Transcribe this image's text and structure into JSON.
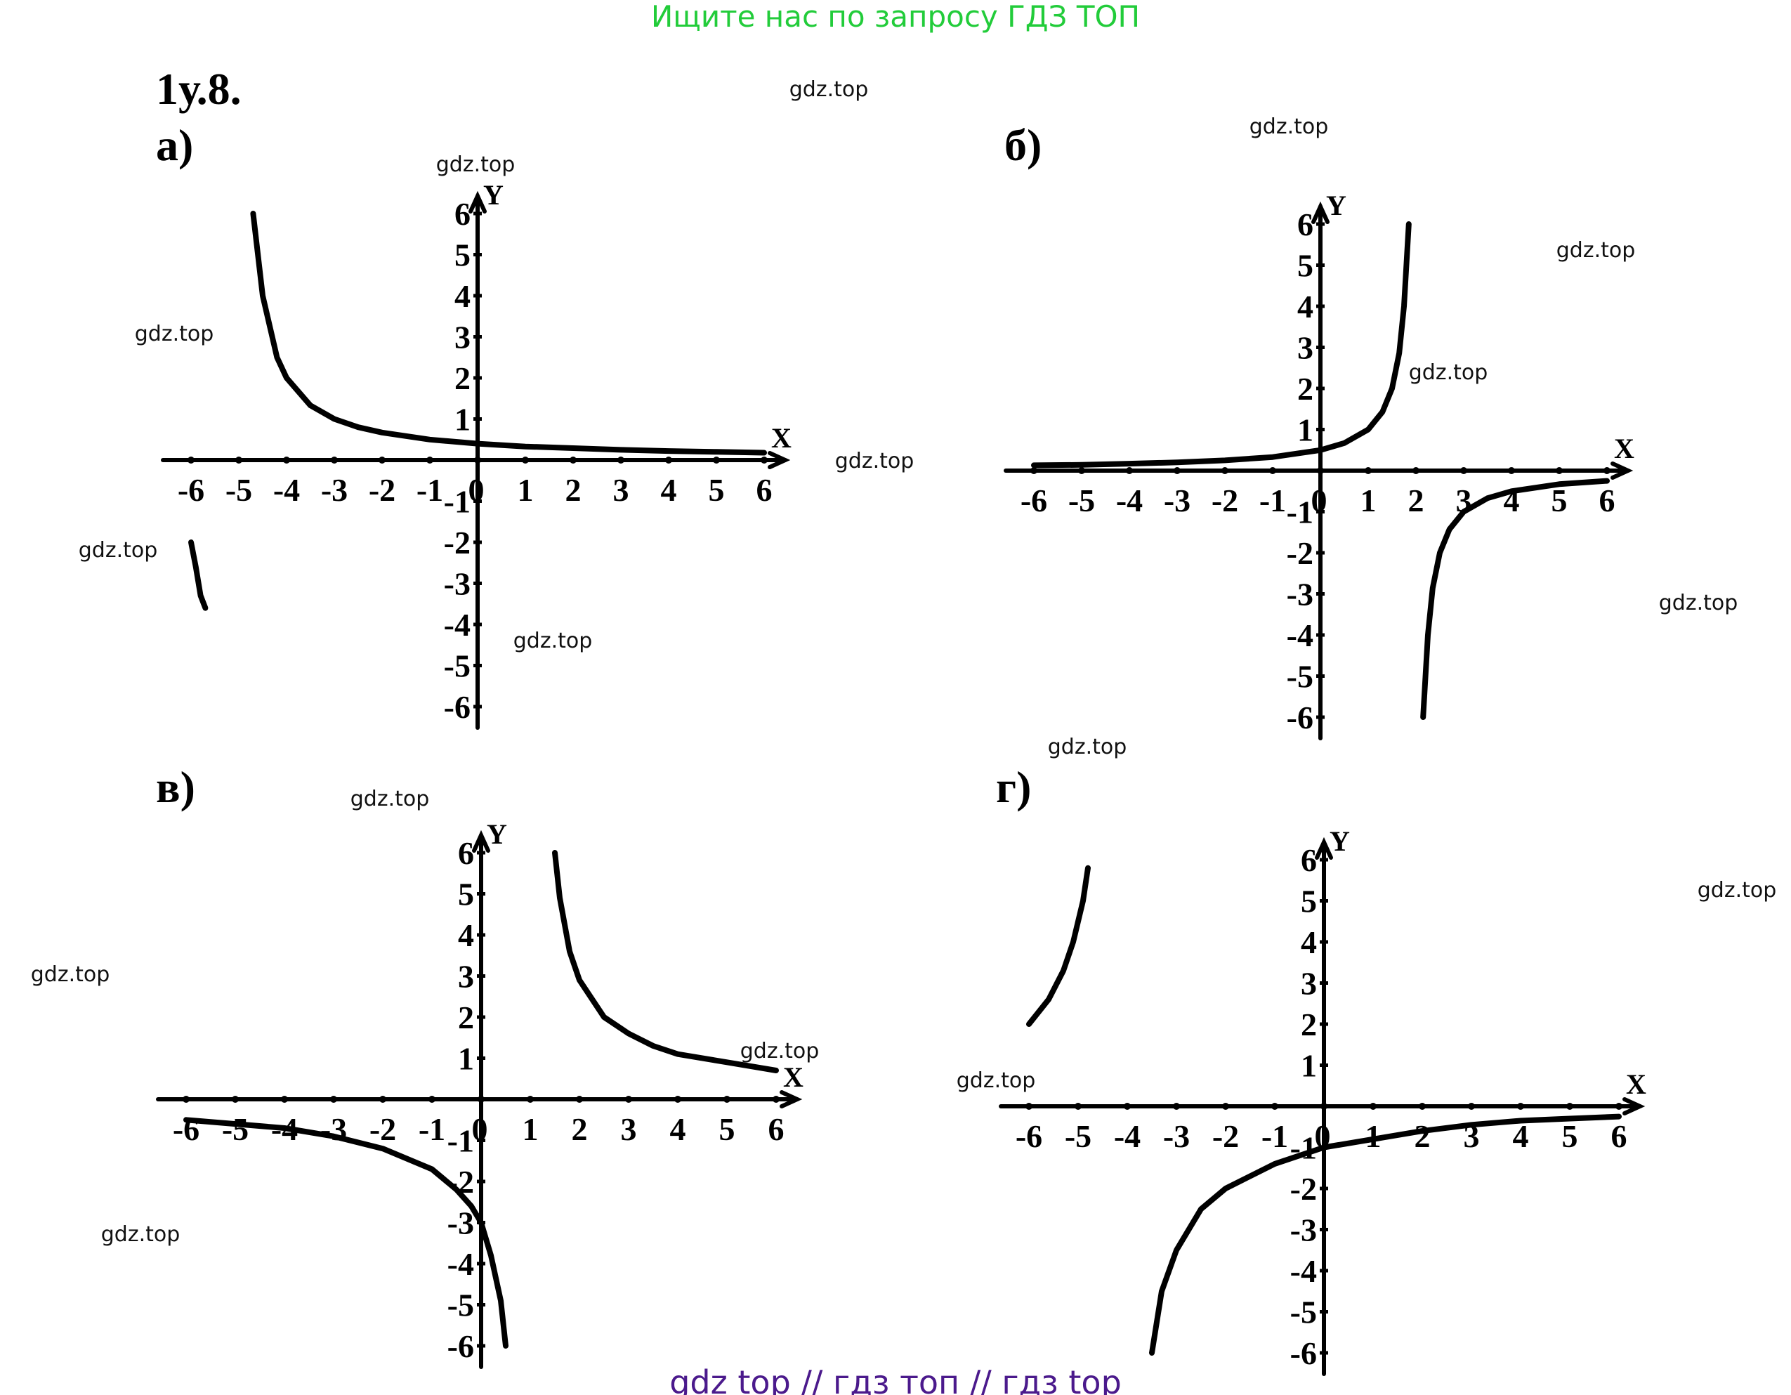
{
  "header": {
    "promo_text": "Ищите нас по запросу ГДЗ ТОП"
  },
  "exercise": {
    "number": "1у.8."
  },
  "watermark": {
    "text": "gdz.top",
    "count": 17
  },
  "footer": {
    "text": "gdz top  //  гдз топ  //  гдз top"
  },
  "colors": {
    "header": "#22cc3a",
    "footer": "#4b1a8c",
    "ink": "#000000"
  },
  "chart_data": [
    {
      "type": "line",
      "part_label": "а)",
      "title": "",
      "xlabel": "X",
      "ylabel": "Y",
      "xlim": [
        -6,
        6
      ],
      "ylim": [
        -6,
        6
      ],
      "grid": false,
      "x_ticks": [
        "-6",
        "-5",
        "-4",
        "-3",
        "-2",
        "-1",
        "0",
        "1",
        "2",
        "3",
        "4",
        "5",
        "6"
      ],
      "y_ticks": [
        "6",
        "5",
        "4",
        "3",
        "2",
        "1",
        "-1",
        "-2",
        "-3",
        "-4",
        "-5",
        "-6"
      ],
      "series": [
        {
          "name": "right branch",
          "x": [
            -4.7,
            -4.5,
            -4.2,
            -4.0,
            -3.5,
            -3.0,
            -2.5,
            -2.0,
            -1.0,
            0,
            1,
            2,
            3,
            4,
            5,
            6
          ],
          "y": [
            6.0,
            4.0,
            2.5,
            2.0,
            1.33,
            1.0,
            0.8,
            0.67,
            0.5,
            0.4,
            0.33,
            0.29,
            0.25,
            0.22,
            0.2,
            0.18
          ]
        },
        {
          "name": "left branch",
          "x": [
            -6.0,
            -5.9,
            -5.8,
            -5.7
          ],
          "y": [
            -2.0,
            -2.6,
            -3.3,
            -3.6
          ]
        }
      ]
    },
    {
      "type": "line",
      "part_label": "б)",
      "title": "",
      "xlabel": "X",
      "ylabel": "Y",
      "xlim": [
        -6,
        6
      ],
      "ylim": [
        -6,
        6
      ],
      "grid": false,
      "x_ticks": [
        "-6",
        "-5",
        "-4",
        "-3",
        "-2",
        "-1",
        "0",
        "1",
        "2",
        "3",
        "4",
        "5",
        "6"
      ],
      "y_ticks": [
        "6",
        "5",
        "4",
        "3",
        "2",
        "1",
        "-1",
        "-2",
        "-3",
        "-4",
        "-5",
        "-6"
      ],
      "series": [
        {
          "name": "left branch",
          "x": [
            -6,
            -5,
            -4,
            -3,
            -2,
            -1,
            0,
            0.5,
            1.0,
            1.3,
            1.5,
            1.65,
            1.75,
            1.85
          ],
          "y": [
            0.13,
            0.14,
            0.17,
            0.2,
            0.25,
            0.33,
            0.5,
            0.67,
            1.0,
            1.43,
            2.0,
            2.86,
            4.0,
            6.0
          ]
        },
        {
          "name": "right branch",
          "x": [
            2.15,
            2.25,
            2.35,
            2.5,
            2.7,
            3.0,
            3.5,
            4,
            5,
            6
          ],
          "y": [
            -6.0,
            -4.0,
            -2.86,
            -2.0,
            -1.43,
            -1.0,
            -0.67,
            -0.5,
            -0.33,
            -0.25
          ]
        }
      ]
    },
    {
      "type": "line",
      "part_label": "в)",
      "title": "",
      "xlabel": "X",
      "ylabel": "Y",
      "xlim": [
        -6,
        6
      ],
      "ylim": [
        -6,
        6
      ],
      "grid": false,
      "x_ticks": [
        "-6",
        "-5",
        "-4",
        "-3",
        "-2",
        "-1",
        "0",
        "1",
        "2",
        "3",
        "4",
        "5",
        "6"
      ],
      "y_ticks": [
        "6",
        "5",
        "4",
        "3",
        "2",
        "1",
        "-1",
        "-2",
        "-3",
        "-4",
        "-5",
        "-6"
      ],
      "series": [
        {
          "name": "right branch",
          "x": [
            1.5,
            1.6,
            1.8,
            2.0,
            2.5,
            3,
            3.5,
            4,
            5,
            6
          ],
          "y": [
            6.0,
            4.9,
            3.6,
            2.9,
            2.0,
            1.6,
            1.3,
            1.1,
            0.9,
            0.7
          ]
        },
        {
          "name": "left branch",
          "x": [
            -6,
            -5,
            -4,
            -3,
            -2,
            -1,
            -0.5,
            -0.2,
            0,
            0.2,
            0.4,
            0.5
          ],
          "y": [
            -0.5,
            -0.6,
            -0.7,
            -0.9,
            -1.2,
            -1.7,
            -2.2,
            -2.6,
            -3.0,
            -3.8,
            -4.9,
            -6.0
          ]
        }
      ]
    },
    {
      "type": "line",
      "part_label": "г)",
      "title": "",
      "xlabel": "X",
      "ylabel": "Y",
      "xlim": [
        -6,
        6
      ],
      "ylim": [
        -6,
        6
      ],
      "grid": false,
      "x_ticks": [
        "-6",
        "-5",
        "-4",
        "-3",
        "-2",
        "-1",
        "0",
        "1",
        "2",
        "3",
        "4",
        "5",
        "6"
      ],
      "y_ticks": [
        "6",
        "5",
        "4",
        "3",
        "2",
        "1",
        "-1",
        "-2",
        "-3",
        "-4",
        "-5",
        "-6"
      ],
      "series": [
        {
          "name": "left branch",
          "x": [
            -6.0,
            -5.6,
            -5.3,
            -5.1,
            -4.9,
            -4.8
          ],
          "y": [
            2.0,
            2.6,
            3.3,
            4.0,
            5.0,
            5.8
          ]
        },
        {
          "name": "right branch",
          "x": [
            -3.5,
            -3.3,
            -3.0,
            -2.5,
            -2.0,
            -1.0,
            0,
            1,
            2,
            3,
            4,
            5,
            6
          ],
          "y": [
            -6.0,
            -4.5,
            -3.5,
            -2.5,
            -2.0,
            -1.4,
            -1.0,
            -0.8,
            -0.6,
            -0.45,
            -0.35,
            -0.3,
            -0.25
          ]
        }
      ]
    }
  ]
}
